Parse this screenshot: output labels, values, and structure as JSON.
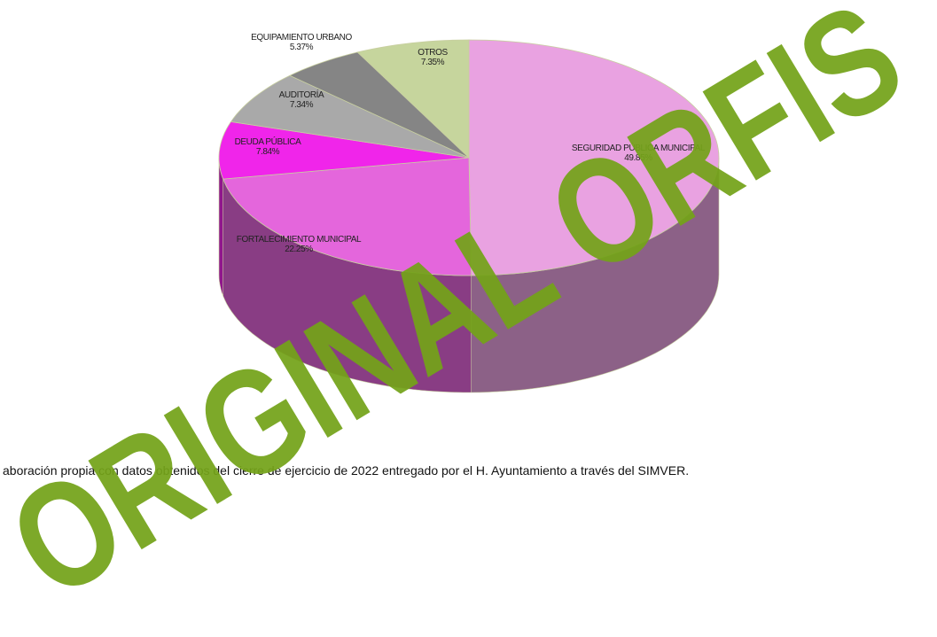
{
  "chart_data": {
    "type": "pie3d",
    "categories": [
      "SEGURIDAD PÚBLICA MUNICIPAL",
      "FORTALECIMIENTO MUNICIPAL",
      "DEUDA PÚBLICA",
      "AUDITORÍA",
      "EQUIPAMIENTO URBANO",
      "OTROS"
    ],
    "values": [
      49.85,
      22.25,
      7.84,
      7.34,
      5.37,
      7.35
    ],
    "value_labels": [
      "49.85%",
      "22.25%",
      "7.84%",
      "7.34%",
      "5.37%",
      "7.35%"
    ],
    "colors": [
      "#e9a2e1",
      "#e466dc",
      "#f025ea",
      "#a9a9a9",
      "#858585",
      "#c6d59d"
    ]
  },
  "footnote": "aboración propia con datos obtenidos del cierre de ejercicio de 2022 entregado por el H. Ayuntamiento a través del SIMVER.",
  "watermark": "ORIGINAL ORFIS"
}
